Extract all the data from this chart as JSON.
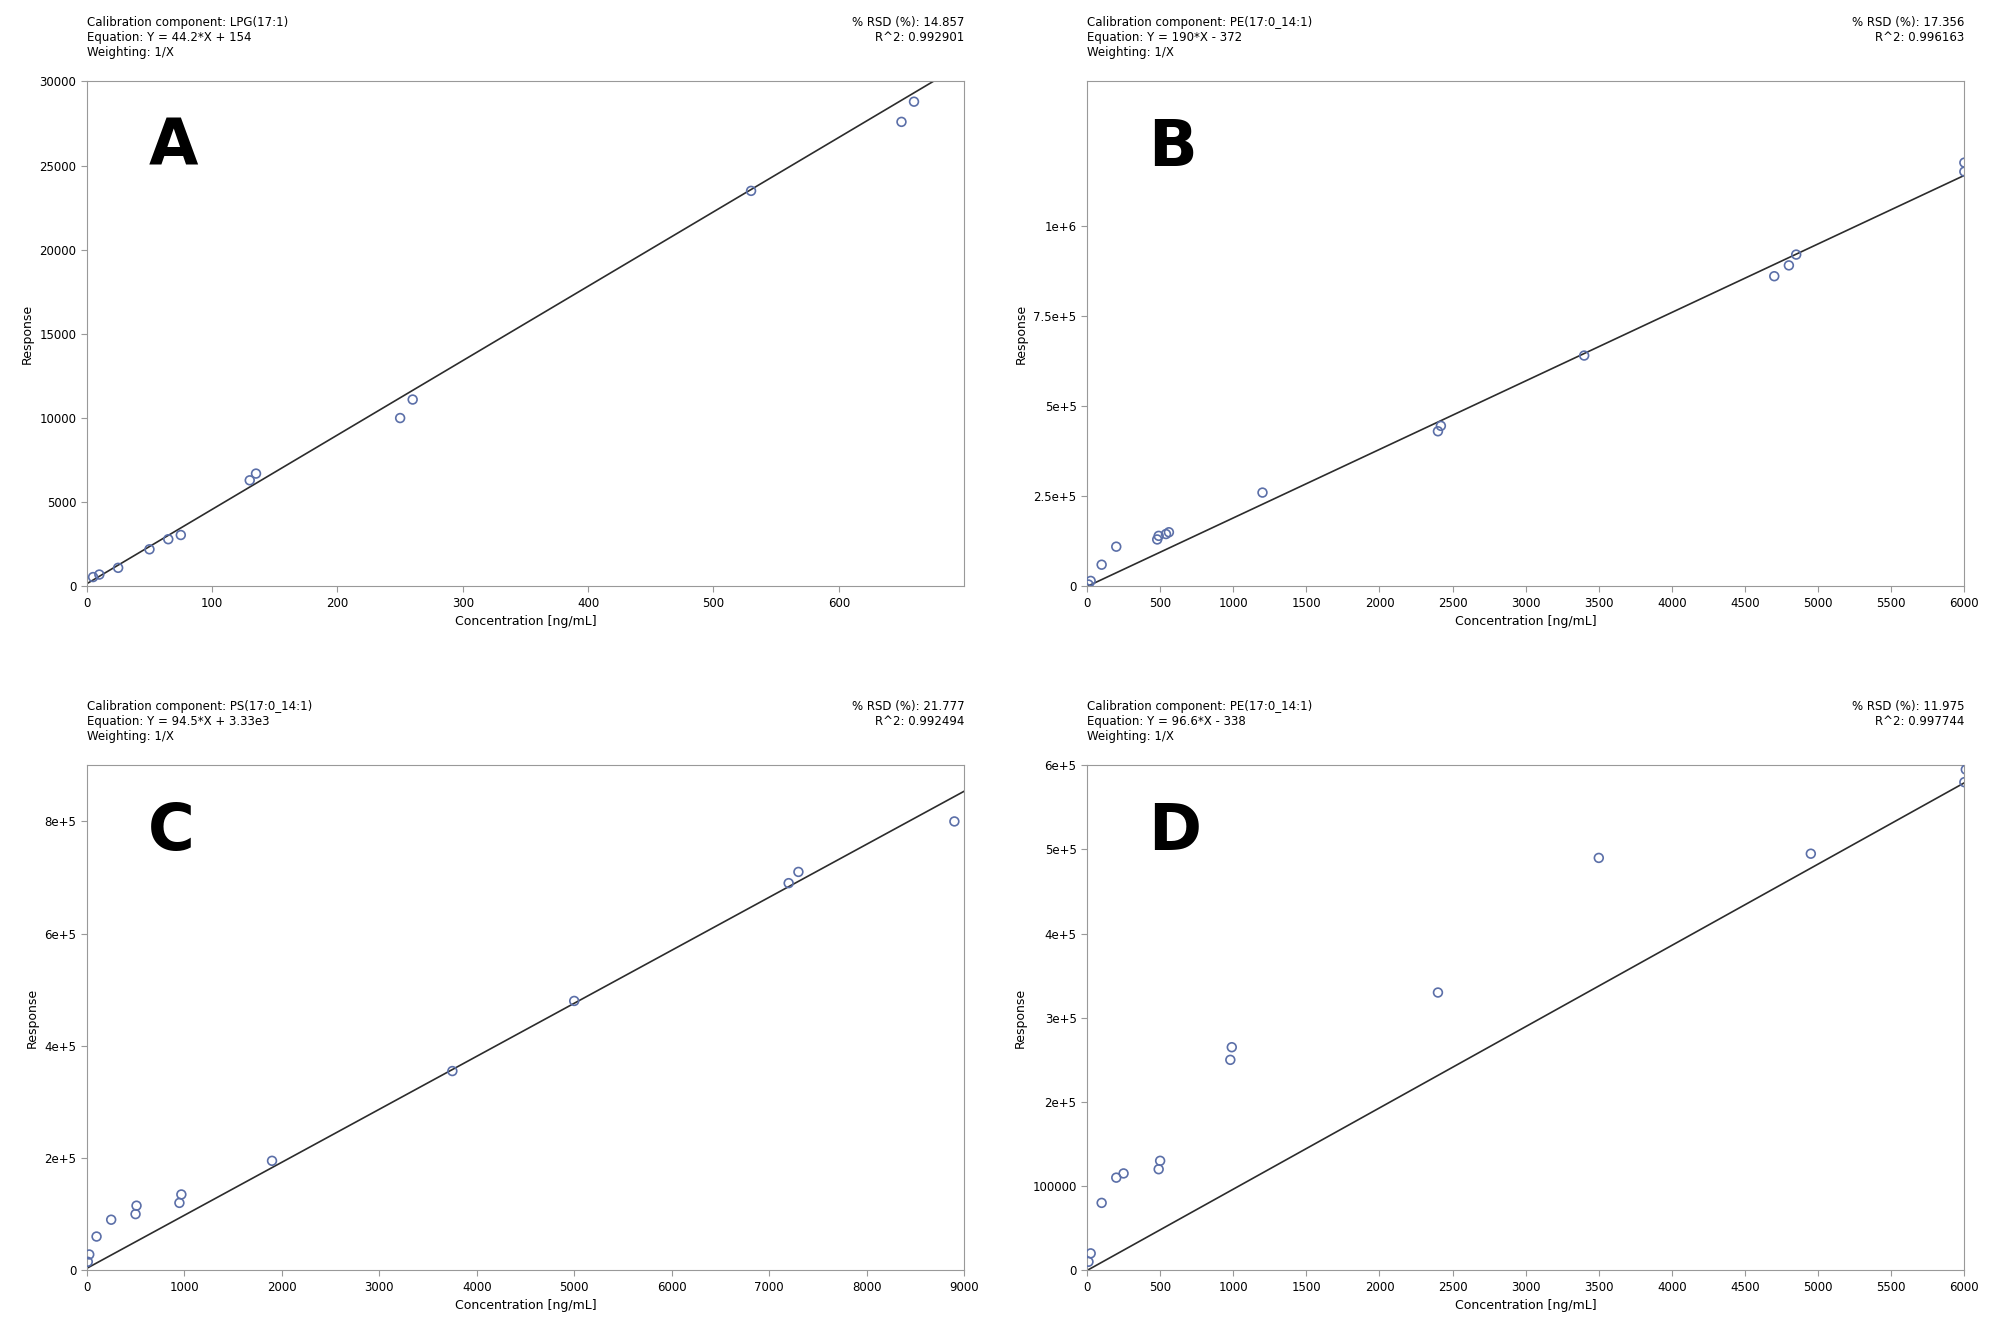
{
  "panels": [
    {
      "label": "A",
      "cal_component": "Calibration component: LPG(17:1)",
      "equation": "Equation: Y = 44.2*X + 154",
      "weighting": "Weighting: 1/X",
      "rsd": "% RSD (%): 14.857",
      "r2": "R^2: 0.992901",
      "slope": 44.2,
      "intercept": 154,
      "xlim": [
        0,
        700
      ],
      "ylim": [
        0,
        30000
      ],
      "xticks": [
        0,
        100,
        200,
        300,
        400,
        500,
        600
      ],
      "ytick_vals": [
        0,
        5000,
        10000,
        15000,
        20000,
        25000,
        30000
      ],
      "ytick_labels": [
        "0",
        "5000",
        "10000",
        "15000",
        "20000",
        "25000",
        "30000"
      ],
      "xlabel": "Concentration [ng/mL]",
      "ylabel": "Response",
      "scatter_x": [
        5,
        10,
        25,
        50,
        65,
        75,
        130,
        135,
        250,
        260,
        530,
        650,
        660
      ],
      "scatter_y": [
        550,
        700,
        1100,
        2200,
        2800,
        3050,
        6300,
        6700,
        10000,
        11100,
        23500,
        27600,
        28800
      ]
    },
    {
      "label": "B",
      "cal_component": "Calibration component: PE(17:0_14:1)",
      "equation": "Equation: Y = 190*X - 372",
      "weighting": "Weighting: 1/X",
      "rsd": "% RSD (%): 17.356",
      "r2": "R^2: 0.996163",
      "slope": 190,
      "intercept": -372,
      "xlim": [
        0,
        6000
      ],
      "ylim": [
        0,
        1400000
      ],
      "xticks": [
        0,
        500,
        1000,
        1500,
        2000,
        2500,
        3000,
        3500,
        4000,
        4500,
        5000,
        5500,
        6000
      ],
      "ytick_vals": [
        0,
        250000,
        500000,
        750000,
        1000000
      ],
      "ytick_labels": [
        "0",
        "2.5e+5",
        "5e+5",
        "7.5e+5",
        "1e+6"
      ],
      "xlabel": "Concentration [ng/mL]",
      "ylabel": "Response",
      "scatter_x": [
        10,
        25,
        100,
        200,
        480,
        490,
        540,
        560,
        1200,
        2400,
        2420,
        3400,
        4700,
        4800,
        4850,
        6000,
        6000
      ],
      "scatter_y": [
        5000,
        15000,
        60000,
        110000,
        130000,
        140000,
        145000,
        150000,
        260000,
        430000,
        445000,
        640000,
        860000,
        890000,
        920000,
        1150000,
        1175000
      ]
    },
    {
      "label": "C",
      "cal_component": "Calibration component: PS(17:0_14:1)",
      "equation": "Equation: Y = 94.5*X + 3.33e3",
      "weighting": "Weighting: 1/X",
      "rsd": "% RSD (%): 21.777",
      "r2": "R^2: 0.992494",
      "slope": 94.5,
      "intercept": 3330,
      "xlim": [
        0,
        9000
      ],
      "ylim": [
        0,
        900000
      ],
      "xticks": [
        0,
        1000,
        2000,
        3000,
        4000,
        5000,
        6000,
        7000,
        8000,
        9000
      ],
      "ytick_vals": [
        0,
        200000,
        400000,
        600000,
        800000
      ],
      "ytick_labels": [
        "0",
        "2e+5",
        "4e+5",
        "6e+5",
        "8e+5"
      ],
      "xlabel": "Concentration [ng/mL]",
      "ylabel": "Response",
      "scatter_x": [
        10,
        25,
        100,
        250,
        500,
        510,
        950,
        970,
        1900,
        3750,
        5000,
        7200,
        7300,
        8900
      ],
      "scatter_y": [
        15000,
        28000,
        60000,
        90000,
        100000,
        115000,
        120000,
        135000,
        195000,
        355000,
        480000,
        690000,
        710000,
        800000
      ]
    },
    {
      "label": "D",
      "cal_component": "Calibration component: PE(17:0_14:1)",
      "equation": "Equation: Y = 96.6*X - 338",
      "weighting": "Weighting: 1/X",
      "rsd": "% RSD (%): 11.975",
      "r2": "R^2: 0.997744",
      "slope": 96.6,
      "intercept": -338,
      "xlim": [
        0,
        6000
      ],
      "ylim": [
        0,
        600000
      ],
      "xticks": [
        0,
        500,
        1000,
        1500,
        2000,
        2500,
        3000,
        3500,
        4000,
        4500,
        5000,
        5500,
        6000
      ],
      "ytick_vals": [
        0,
        100000,
        200000,
        300000,
        400000,
        500000,
        600000
      ],
      "ytick_labels": [
        "0",
        "100000",
        "2e+5",
        "3e+5",
        "4e+5",
        "5e+5",
        "6e+5"
      ],
      "xlabel": "Concentration [ng/mL]",
      "ylabel": "Response",
      "scatter_x": [
        10,
        25,
        100,
        200,
        250,
        490,
        500,
        980,
        990,
        2400,
        3500,
        4950,
        6000,
        6010
      ],
      "scatter_y": [
        10000,
        20000,
        80000,
        110000,
        115000,
        120000,
        130000,
        250000,
        265000,
        330000,
        490000,
        495000,
        580000,
        595000
      ]
    }
  ],
  "scatter_color": "#5b6fa8",
  "line_color": "#2c2c2c",
  "bg_color": "#ffffff",
  "text_color": "#000000",
  "label_fontsize": 46,
  "info_fontsize": 8.5,
  "axis_label_fontsize": 9,
  "tick_fontsize": 8.5
}
